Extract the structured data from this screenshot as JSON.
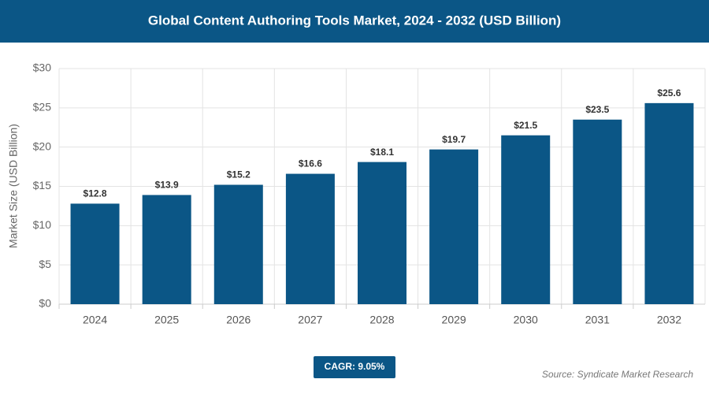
{
  "chart_data": {
    "type": "bar",
    "title": "Global Content Authoring Tools Market, 2024 - 2032 (USD Billion)",
    "y_label": "Market Size (USD Billion)",
    "categories": [
      "2024",
      "2025",
      "2026",
      "2027",
      "2028",
      "2029",
      "2030",
      "2031",
      "2032"
    ],
    "values": [
      12.8,
      13.9,
      15.2,
      16.6,
      18.1,
      19.7,
      21.5,
      23.5,
      25.6
    ],
    "value_labels": [
      "$12.8",
      "$13.9",
      "$15.2",
      "$16.6",
      "$18.1",
      "$19.7",
      "$21.5",
      "$23.5",
      "$25.6"
    ],
    "color": "#0b5686",
    "ylim": [
      0,
      30
    ],
    "yticks": [
      {
        "value": 0,
        "label": "$0"
      },
      {
        "value": 5,
        "label": "$5"
      },
      {
        "value": 10,
        "label": "$10"
      },
      {
        "value": 15,
        "label": "$15"
      },
      {
        "value": 20,
        "label": "$20"
      },
      {
        "value": 25,
        "label": "$25"
      },
      {
        "value": 30,
        "label": "$30"
      }
    ],
    "grid": true,
    "badge": "CAGR: 9.05%",
    "source": "Source: Syndicate Market Research"
  }
}
